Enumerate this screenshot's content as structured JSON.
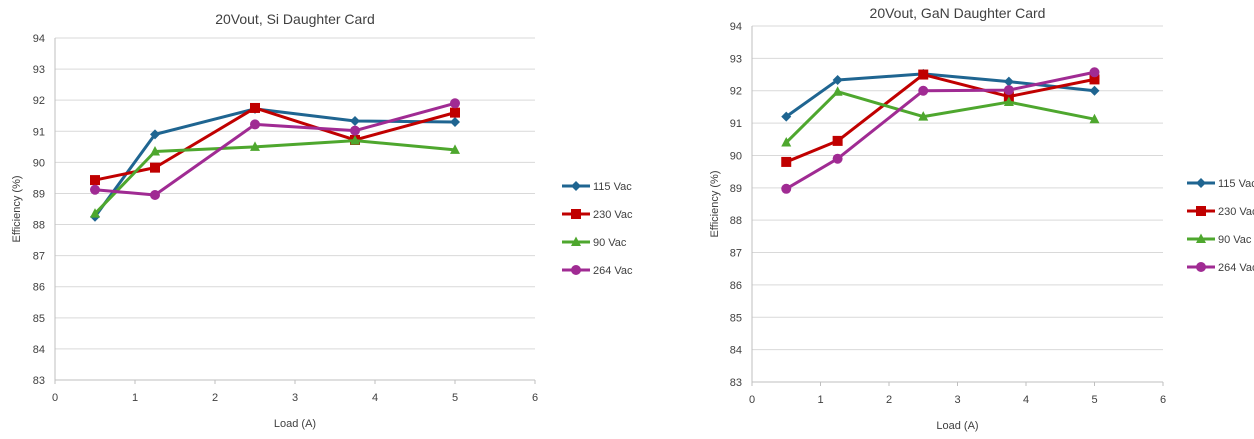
{
  "chart_data": [
    {
      "type": "line",
      "title": "20Vout, Si Daughter Card",
      "xlabel": "Load (A)",
      "ylabel": "Efficiency (%)",
      "xlim": [
        0,
        6
      ],
      "ylim": [
        83,
        94
      ],
      "xticks": [
        0,
        1,
        2,
        3,
        4,
        5,
        6
      ],
      "yticks": [
        83,
        84,
        85,
        86,
        87,
        88,
        89,
        90,
        91,
        92,
        93,
        94
      ],
      "grid": true,
      "legend_position": "right",
      "x": [
        0.5,
        1.25,
        2.5,
        3.75,
        5
      ],
      "series": [
        {
          "name": "115 Vac",
          "color": "#1f6591",
          "marker": "diamond",
          "values": [
            88.25,
            90.9,
            91.72,
            91.33,
            91.3
          ]
        },
        {
          "name": "230 Vac",
          "color": "#c00000",
          "marker": "square",
          "values": [
            89.43,
            89.83,
            91.75,
            90.72,
            91.6
          ]
        },
        {
          "name": "90 Vac",
          "color": "#4ea72e",
          "marker": "triangle",
          "values": [
            88.35,
            90.35,
            90.5,
            90.7,
            90.4
          ]
        },
        {
          "name": "264 Vac",
          "color": "#a02b93",
          "marker": "circle",
          "values": [
            89.12,
            88.95,
            91.22,
            91.02,
            91.9
          ]
        }
      ]
    },
    {
      "type": "line",
      "title": "20Vout, GaN Daughter Card",
      "xlabel": "Load (A)",
      "ylabel": "Efficiency (%)",
      "xlim": [
        0,
        6
      ],
      "ylim": [
        83,
        94
      ],
      "xticks": [
        0,
        1,
        2,
        3,
        4,
        5,
        6
      ],
      "yticks": [
        83,
        84,
        85,
        86,
        87,
        88,
        89,
        90,
        91,
        92,
        93,
        94
      ],
      "grid": true,
      "legend_position": "right",
      "x": [
        0.5,
        1.25,
        2.5,
        3.75,
        5
      ],
      "series": [
        {
          "name": "115 Vac",
          "color": "#1f6591",
          "marker": "diamond",
          "values": [
            91.2,
            92.33,
            92.52,
            92.28,
            92.0
          ]
        },
        {
          "name": "230 Vac",
          "color": "#c00000",
          "marker": "square",
          "values": [
            89.8,
            90.45,
            92.5,
            91.82,
            92.35
          ]
        },
        {
          "name": "90 Vac",
          "color": "#4ea72e",
          "marker": "triangle",
          "values": [
            90.4,
            91.97,
            91.2,
            91.65,
            91.12
          ]
        },
        {
          "name": "264 Vac",
          "color": "#a02b93",
          "marker": "circle",
          "values": [
            88.97,
            89.9,
            92.0,
            92.02,
            92.57
          ]
        }
      ]
    }
  ]
}
